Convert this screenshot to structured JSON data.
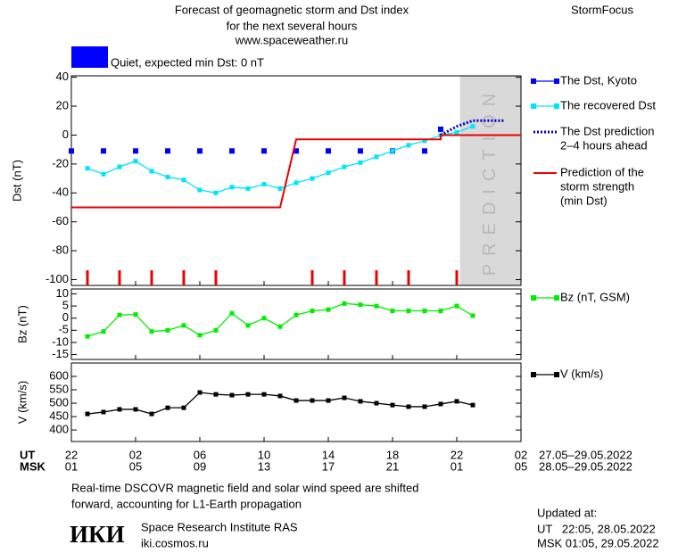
{
  "header": {
    "title_lines": [
      "Forecast of geomagnetic storm and Dst index",
      "for the next several hours",
      "www.spaceweather.ru"
    ],
    "brand": "StormFocus",
    "status": {
      "color": "#0000ff",
      "text": "Quiet, expected min Dst: 0 nT"
    }
  },
  "x_axis": {
    "xlim": [
      0,
      28
    ],
    "ut_label": "UT",
    "msk_label": "MSK",
    "xticks": [
      {
        "value": 0,
        "label": "22",
        "msk": "01"
      },
      {
        "value": 4,
        "label": "02",
        "msk": "05"
      },
      {
        "value": 8,
        "label": "06",
        "msk": "09"
      },
      {
        "value": 12,
        "label": "10",
        "msk": "13"
      },
      {
        "value": 16,
        "label": "14",
        "msk": "17"
      },
      {
        "value": 20,
        "label": "18",
        "msk": "21"
      },
      {
        "value": 24,
        "label": "22",
        "msk": "01"
      },
      {
        "value": 28,
        "label": "02",
        "msk": "05"
      }
    ],
    "ut_dates": "27.05–29.05.2022",
    "msk_dates": "28.05–29.05.2022"
  },
  "chart_data": [
    {
      "type": "line",
      "ylabel": "Dst (nT)",
      "ylim": [
        -104,
        41
      ],
      "yticks": [
        40,
        20,
        0,
        -20,
        -40,
        -60,
        -80,
        -100
      ],
      "shade": {
        "from": 24.2,
        "to": 28,
        "label": "PREDICTION",
        "color": "#d9d9d9"
      },
      "markers": {
        "color": "#ee0000",
        "x": [
          1,
          3,
          5,
          7,
          9,
          15,
          17,
          19,
          21,
          24
        ]
      },
      "series": [
        {
          "name": [
            "The Dst, Kyoto"
          ],
          "color": "#0000ff",
          "style": "squares",
          "x": [
            0,
            2,
            4,
            6,
            8,
            10,
            12,
            14,
            16,
            18,
            20,
            22,
            23
          ],
          "values": [
            -11,
            -11,
            -11,
            -11,
            -11,
            -11,
            -11,
            -11,
            -11,
            -11,
            -11,
            -11,
            4
          ]
        },
        {
          "name": [
            "The recovered Dst"
          ],
          "color": "#00e5ff",
          "style": "line-markers",
          "x": [
            1,
            2,
            3,
            4,
            5,
            6,
            7,
            8,
            9,
            10,
            11,
            12,
            13,
            14,
            15,
            16,
            17,
            18,
            19,
            20,
            21,
            22,
            23,
            24,
            25
          ],
          "values": [
            -23,
            -27,
            -22,
            -18,
            -25,
            -29,
            -31,
            -38,
            -40,
            -36,
            -37,
            -34,
            -37,
            -33,
            -30,
            -26,
            -22,
            -19,
            -15,
            -11,
            -7,
            -4,
            0,
            2,
            6
          ]
        },
        {
          "name": [
            "The Dst prediction",
            "2–4 hours ahead"
          ],
          "color": "#0000cc",
          "style": "dotted",
          "x": [
            23,
            24,
            25,
            27
          ],
          "values": [
            0,
            6,
            10,
            10
          ]
        },
        {
          "name": [
            "Prediction of the",
            "storm strength",
            "(min Dst)"
          ],
          "color": "#ee0000",
          "style": "line",
          "x": [
            0,
            13,
            14,
            23,
            23,
            28
          ],
          "values": [
            -50,
            -50,
            -3,
            -3,
            0,
            0
          ]
        }
      ]
    },
    {
      "type": "line",
      "ylabel": "Bz (nT)",
      "ylim": [
        -17,
        12
      ],
      "yticks": [
        10,
        5,
        0,
        -5,
        -10,
        -15
      ],
      "series": [
        {
          "name": [
            "Bz (nT, GSM)"
          ],
          "color": "#00ee00",
          "style": "line-markers",
          "x": [
            1,
            2,
            3,
            4,
            5,
            6,
            7,
            8,
            9,
            10,
            11,
            12,
            13,
            14,
            15,
            16,
            17,
            18,
            19,
            20,
            21,
            22,
            23,
            24,
            25
          ],
          "values": [
            -7.5,
            -5.5,
            1.3,
            1.5,
            -5.5,
            -5,
            -3,
            -7,
            -5,
            2,
            -3,
            0,
            -3.5,
            1.3,
            3,
            3.5,
            6,
            5.5,
            5,
            3,
            3,
            3,
            3,
            5,
            1
          ]
        }
      ]
    },
    {
      "type": "line",
      "ylabel": "V (km/s)",
      "ylim": [
        357,
        650
      ],
      "yticks": [
        600,
        550,
        500,
        450,
        400
      ],
      "series": [
        {
          "name": [
            "V (km/s)"
          ],
          "color": "#000000",
          "style": "line-markers",
          "x": [
            1,
            2,
            3,
            4,
            5,
            6,
            7,
            8,
            9,
            10,
            11,
            12,
            13,
            14,
            15,
            16,
            17,
            18,
            19,
            20,
            21,
            22,
            23,
            24,
            25
          ],
          "values": [
            460,
            467,
            477,
            477,
            460,
            483,
            483,
            540,
            533,
            530,
            533,
            533,
            527,
            510,
            510,
            510,
            520,
            507,
            500,
            493,
            487,
            487,
            497,
            507,
            493
          ]
        }
      ]
    }
  ],
  "footer": {
    "note_lines": [
      "Real-time DSCOVR magnetic field and solar wind speed are shifted",
      "forward, accounting for L1-Earth propagation"
    ],
    "logo": "ИКИ",
    "institute": "Space Research Institute RAS",
    "site": "iki.cosmos.ru",
    "updated": {
      "label": "Updated at:",
      "ut": "UT   22:05, 28.05.2022",
      "msk": "MSK 01:05, 29.05.2022"
    }
  }
}
